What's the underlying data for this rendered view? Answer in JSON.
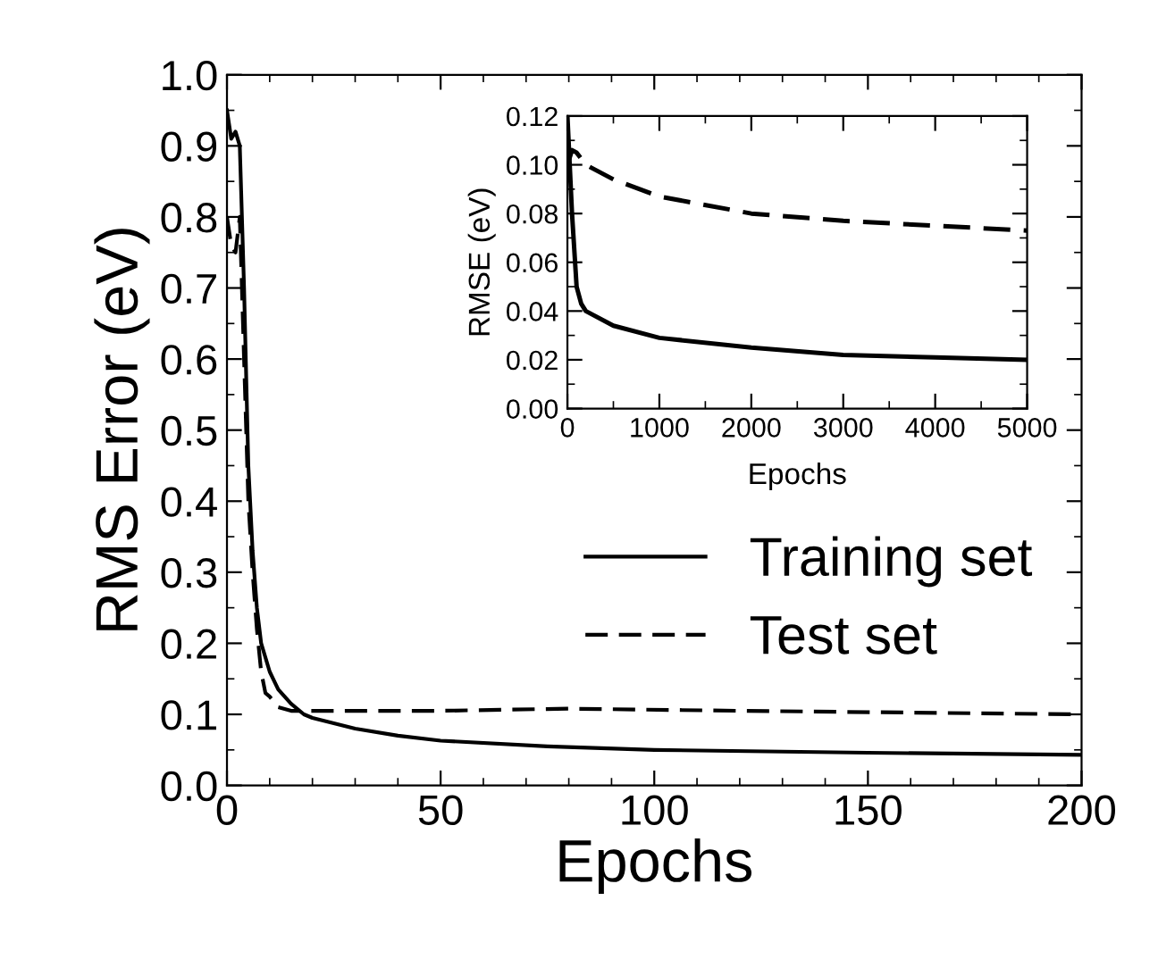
{
  "chart_data": [
    {
      "type": "line",
      "xlabel": "Epochs",
      "ylabel": "RMS Error (eV)",
      "xlim": [
        0,
        200
      ],
      "ylim": [
        0.0,
        1.0
      ],
      "xticks": [
        0,
        50,
        100,
        150,
        200
      ],
      "yticks": [
        {
          "value": 0,
          "label": "0.0"
        },
        0.1,
        0.2,
        0.3,
        0.4,
        0.5,
        0.6,
        0.7,
        0.8,
        0.9,
        {
          "value": 1,
          "label": "1.0"
        }
      ],
      "grid": false,
      "legend": "right",
      "series": [
        {
          "name": "Training set",
          "color": "#000000",
          "line_style": "solid",
          "x": [
            0,
            1,
            2,
            3,
            4,
            5,
            6,
            7,
            8,
            10,
            12,
            15,
            18,
            20,
            30,
            40,
            50,
            75,
            100,
            150,
            200
          ],
          "values": [
            0.95,
            0.91,
            0.92,
            0.9,
            0.7,
            0.45,
            0.33,
            0.25,
            0.2,
            0.16,
            0.135,
            0.115,
            0.1,
            0.095,
            0.08,
            0.07,
            0.063,
            0.055,
            0.05,
            0.046,
            0.043
          ]
        },
        {
          "name": "Test set",
          "color": "#000000",
          "line_style": "dashed",
          "x": [
            0,
            1,
            2,
            3,
            4,
            5,
            6,
            7,
            8,
            9,
            10,
            12,
            15,
            50,
            80,
            120,
            200
          ],
          "values": [
            0.8,
            0.76,
            0.75,
            0.8,
            0.6,
            0.4,
            0.3,
            0.22,
            0.16,
            0.13,
            0.125,
            0.11,
            0.105,
            0.105,
            0.108,
            0.105,
            0.1
          ]
        }
      ]
    },
    {
      "type": "line",
      "xlabel": "Epochs",
      "ylabel": "RMSE (eV)",
      "xlim": [
        0,
        5000
      ],
      "ylim": [
        0.0,
        0.12
      ],
      "xticks": [
        0,
        1000,
        2000,
        3000,
        4000,
        5000
      ],
      "yticks": [
        {
          "value": 0,
          "label": "0.00"
        },
        {
          "value": 0.02,
          "label": "0.02"
        },
        {
          "value": 0.04,
          "label": "0.04"
        },
        {
          "value": 0.06,
          "label": "0.06"
        },
        {
          "value": 0.08,
          "label": "0.08"
        },
        {
          "value": 0.1,
          "label": "0.10"
        },
        {
          "value": 0.12,
          "label": "0.12"
        }
      ],
      "grid": false,
      "series": [
        {
          "color": "#000000",
          "line_style": "solid",
          "x": [
            0,
            50,
            100,
            150,
            200,
            500,
            1000,
            2000,
            3000,
            4000,
            5000
          ],
          "values": [
            0.12,
            0.08,
            0.05,
            0.043,
            0.04,
            0.034,
            0.029,
            0.025,
            0.022,
            0.021,
            0.02
          ]
        },
        {
          "color": "#000000",
          "line_style": "dashed",
          "x": [
            0,
            50,
            100,
            200,
            500,
            1000,
            2000,
            3000,
            4000,
            5000
          ],
          "values": [
            0.1,
            0.106,
            0.105,
            0.1,
            0.094,
            0.087,
            0.08,
            0.077,
            0.075,
            0.073
          ]
        }
      ]
    }
  ]
}
